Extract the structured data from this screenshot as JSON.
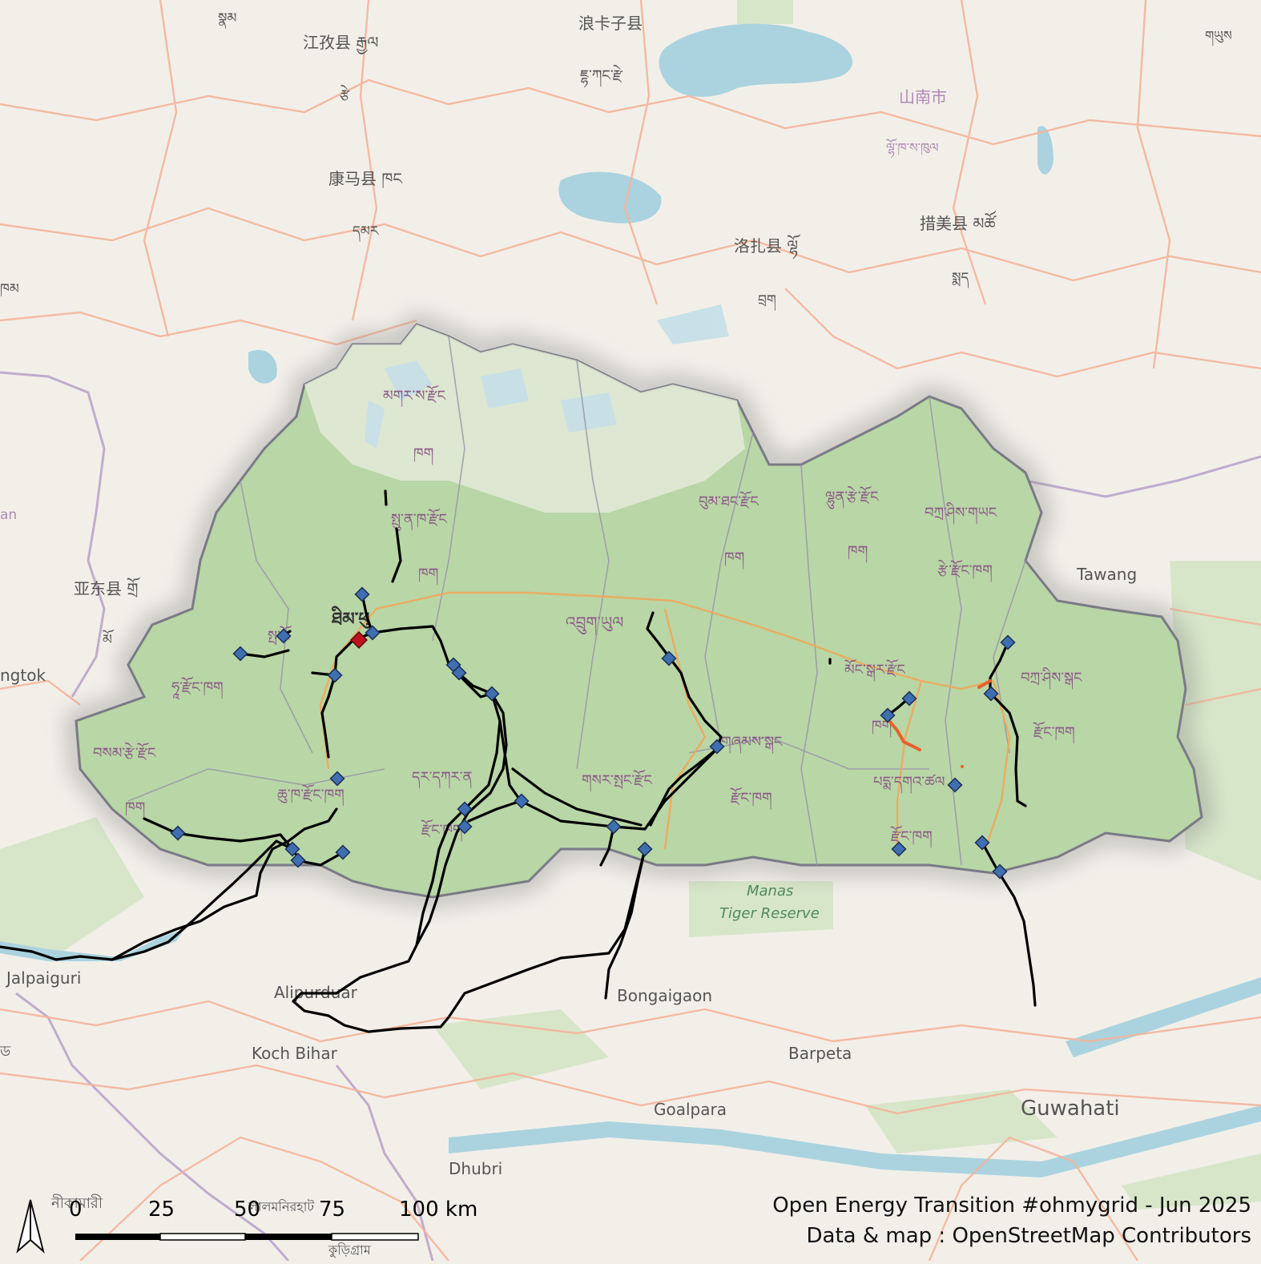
{
  "colors": {
    "land": "#f2efe9",
    "forest": "#add19e",
    "bhutan_tint": "#cfe3c0",
    "water": "#aad3df",
    "roads": "#f7b7a0",
    "border": "#8f8f8f",
    "line": "#000000",
    "substation": "#3f6fb0",
    "plant_red": "#c1121f",
    "construction": "#e8602c"
  },
  "labels": {
    "lhasa_a": "浪卡子县",
    "lhasa_b": "ཇྷ་ཀང་རྫེ",
    "shannan": "山南市",
    "lhokha": "ལྷོ་ཁ་ས་ཁུལ",
    "gyantse": "江孜县 རྒྱལ",
    "gyangtse2": "རྩེ",
    "kangmar": "康马县 ཁང",
    "kangmar2": "དམར",
    "nakartse": "ཐེམ",
    "cuome": "措美县 མཚོ",
    "cuome2": "སྨད",
    "lhozhag": "洛扎县 ལྷོ",
    "lhozhag2": "བྲག",
    "yadong": "亚东县 གྲོ",
    "yadong2": "མོ",
    "gangtok": "ngtok",
    "tawang": "Tawang",
    "gasa": "མགར་ས་རྫོང",
    "gasa2": "ཁག",
    "punakha": "སྤུ་ན་ཁ་རྫོང",
    "punakha2": "ཁག",
    "thimphu": "ཐིམ་ཕུ",
    "paro": "སྤ་རོ",
    "haa": "ཧཱ་རྫོང་ཁག",
    "samtse": "བསམ་རྩེ་རྫོང",
    "samtse2": "ཁག",
    "chukha": "ཆུ་ཁ་རྫོང་ཁག",
    "dagana": "དར་དཀར་ན",
    "dagana2": "རྫོང་ཁག",
    "wangdue": "འབྲུག་ཡུལ",
    "bumthang": "བུམ་ཐང་རྫོང",
    "bumthang2": "ཁག",
    "lhuntse": "ལྷུན་རྩེ་རྫོང",
    "lhuntse2": "ཁག",
    "yangtse": "བཀྲ་ཤིས་གཡང",
    "yangtse2": "རྩེ་རྫོང་ཁག",
    "trashigang": "བཀྲ་ཤིས་སྒང",
    "trashigang2": "རྫོང་ཁག",
    "mongar": "མོང་སྒར་རྫོང",
    "mongar2": "ཁག",
    "zhemgang": "གཞམས་སྒང",
    "zhemgang2": "རྫོང་ཁག",
    "sarpang": "གསར་སྤང་རྫོང",
    "pemagatshel": "པདྨ་དགའ་ཚལ",
    "samdrup": "རྫོང་ཁག",
    "manas1": "Manas",
    "manas2": "Tiger Reserve",
    "jalpaiguri": "Jalpaiguri",
    "alipurduar": "Alipurduar",
    "kochbihar": "Koch Bihar",
    "bongaigaon": "Bongaigaon",
    "barpeta": "Barpeta",
    "goalpara": "Goalpara",
    "dhubri": "Dhubri",
    "guwahati": "Guwahati",
    "kokrajhar": "নীকামারী",
    "lalmonirhat": "লালমনিরহাট",
    "kurigram": "কুড়িগ্রাম",
    "left_edge": "ཁམ",
    "left_edge2": "an",
    "bd": "ড",
    "top_left": "སྣམ",
    "top_right": "གཡུས"
  },
  "scale_bar": {
    "ticks": [
      "0",
      "25",
      "50",
      "75",
      "100 km"
    ]
  },
  "north_arrow": "north-arrow-icon",
  "credit": {
    "line1": "Open Energy Transition #ohmygrid - Jun 2025",
    "line2": "Data & map : OpenStreetMap Contributors"
  }
}
